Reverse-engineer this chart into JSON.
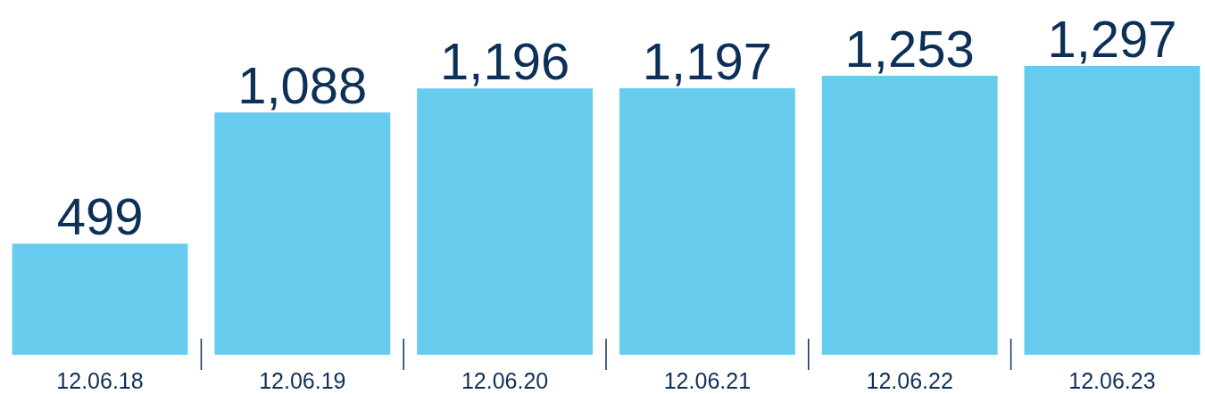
{
  "chart_data": {
    "type": "bar",
    "categories": [
      "12.06.18",
      "12.06.19",
      "12.06.20",
      "12.06.21",
      "12.06.22",
      "12.06.23"
    ],
    "values": [
      499,
      1088,
      1196,
      1197,
      1253,
      1297
    ],
    "value_labels": [
      "499",
      "1,088",
      "1,196",
      "1,197",
      "1,253",
      "1,297"
    ],
    "color": "#66cbec"
  }
}
